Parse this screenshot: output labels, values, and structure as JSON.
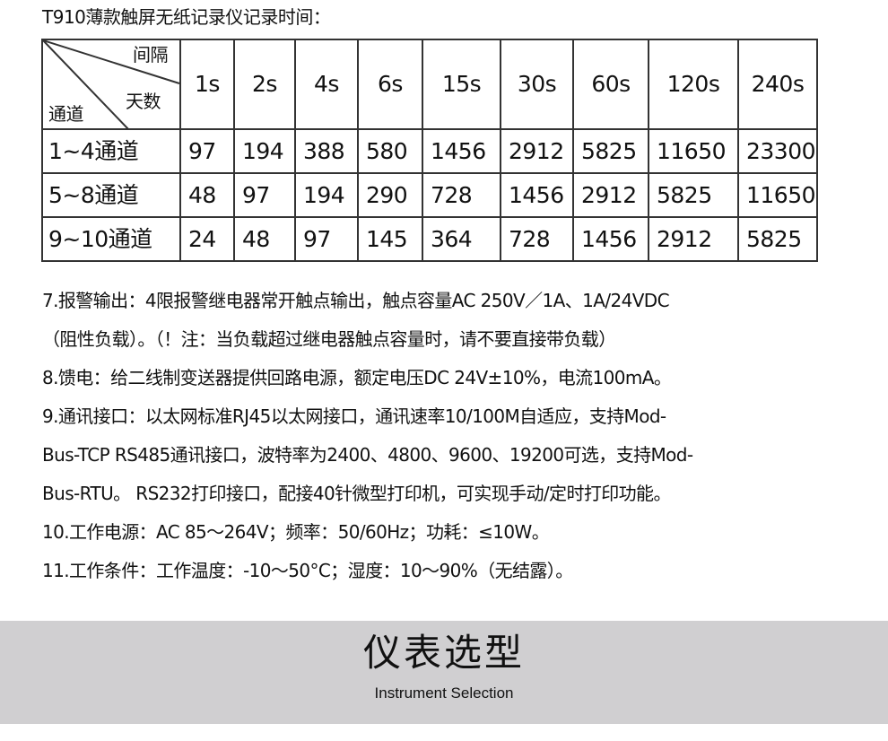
{
  "title": "T910薄款触屏无纸记录仪记录时间：",
  "table": {
    "corner": {
      "top_right": "间隔",
      "middle": "天数",
      "bottom_left": "通道"
    },
    "intervals": [
      "1s",
      "2s",
      "4s",
      "6s",
      "15s",
      "30s",
      "60s",
      "120s",
      "240s"
    ],
    "rows": [
      {
        "label": "1~4通道",
        "values": [
          "97",
          "194",
          "388",
          "580",
          "1456",
          "2912",
          "5825",
          "11650",
          "23300"
        ]
      },
      {
        "label": "5~8通道",
        "values": [
          "48",
          "97",
          "194",
          "290",
          "728",
          "1456",
          "2912",
          "5825",
          "11650"
        ]
      },
      {
        "label": "9~10通道",
        "values": [
          "24",
          "48",
          "97",
          "145",
          "364",
          "728",
          "1456",
          "2912",
          "5825"
        ]
      }
    ]
  },
  "specs": [
    "7.报警输出：4限报警继电器常开触点输出，触点容量AC 250V／1A、1A/24VDC",
    "（阻性负载）。（！注：当负载超过继电器触点容量时，请不要直接带负载）",
    "8.馈电：给二线制变送器提供回路电源，额定电压DC 24V±10%，电流100mA。",
    "9.通讯接口：以太网标准RJ45以太网接口，通讯速率10/100M自适应，支持Mod-",
    "Bus-TCP RS485通讯接口，波特率为2400、4800、9600、19200可选，支持Mod-",
    "Bus-RTU。 RS232打印接口，配接40针微型打印机，可实现手动/定时打印功能。",
    "10.工作电源：AC 85～264V；频率：50/60Hz；功耗：≤10W。",
    "11.工作条件：工作温度：-10～50°C；湿度：10～90%（无结露）。"
  ],
  "section": {
    "title": "仪表选型",
    "subtitle": "Instrument Selection"
  },
  "colors": {
    "band": "#d0cfd1",
    "text": "#111111",
    "border": "#333333"
  }
}
